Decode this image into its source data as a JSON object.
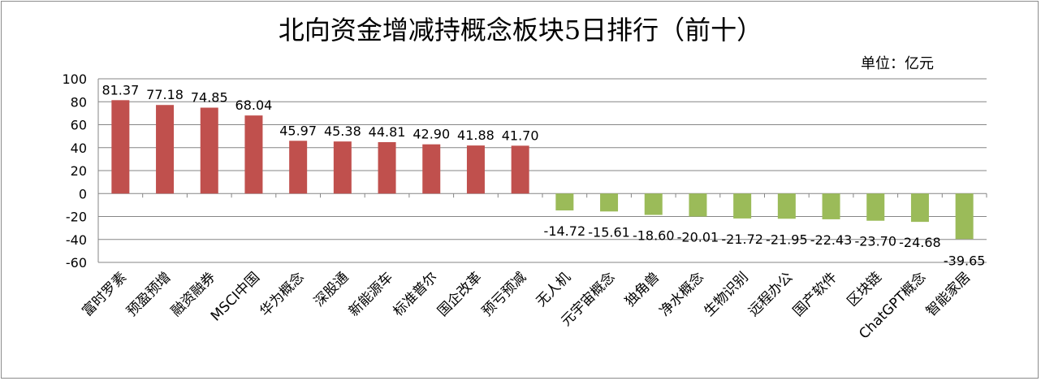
{
  "title": "北向资金增减持概念板块5日排行（前十）",
  "unit_label": "单位：亿元",
  "colors": {
    "positive": "#c0504d",
    "negative": "#9bbb59",
    "grid": "#868686",
    "axis": "#868686",
    "text": "#000000"
  },
  "chart_data": {
    "type": "bar",
    "title": "北向资金增减持概念板块5日排行（前十）",
    "unit": "单位：亿元",
    "categories": [
      "富时罗素",
      "预盈预增",
      "融资融券",
      "MSCI中国",
      "华为概念",
      "深股通",
      "新能源车",
      "标准普尔",
      "国企改革",
      "预亏预减",
      "无人机",
      "元宇宙概念",
      "独角兽",
      "净水概念",
      "生物识别",
      "远程办公",
      "国产软件",
      "区块链",
      "ChatGPT概念",
      "智能家居"
    ],
    "values": [
      81.37,
      77.18,
      74.85,
      68.04,
      45.97,
      45.38,
      44.81,
      42.9,
      41.88,
      41.7,
      -14.72,
      -15.61,
      -18.6,
      -20.01,
      -21.72,
      -21.95,
      -22.43,
      -23.7,
      -24.68,
      -39.65
    ],
    "data_labels": [
      "81.37",
      "77.18",
      "74.85",
      "68.04",
      "45.97",
      "45.38",
      "44.81",
      "42.90",
      "41.88",
      "41.70",
      "-14.72",
      "-15.61",
      "-18.60",
      "-20.01",
      "-21.72",
      "-21.95",
      "-22.43",
      "-23.70",
      "-24.68",
      "-39.65"
    ],
    "yticks": [
      "100",
      "80",
      "60",
      "40",
      "20",
      "0",
      "-20",
      "-40",
      "-60"
    ],
    "ylim": [
      -60,
      100
    ],
    "grid": true,
    "legend": "none"
  }
}
